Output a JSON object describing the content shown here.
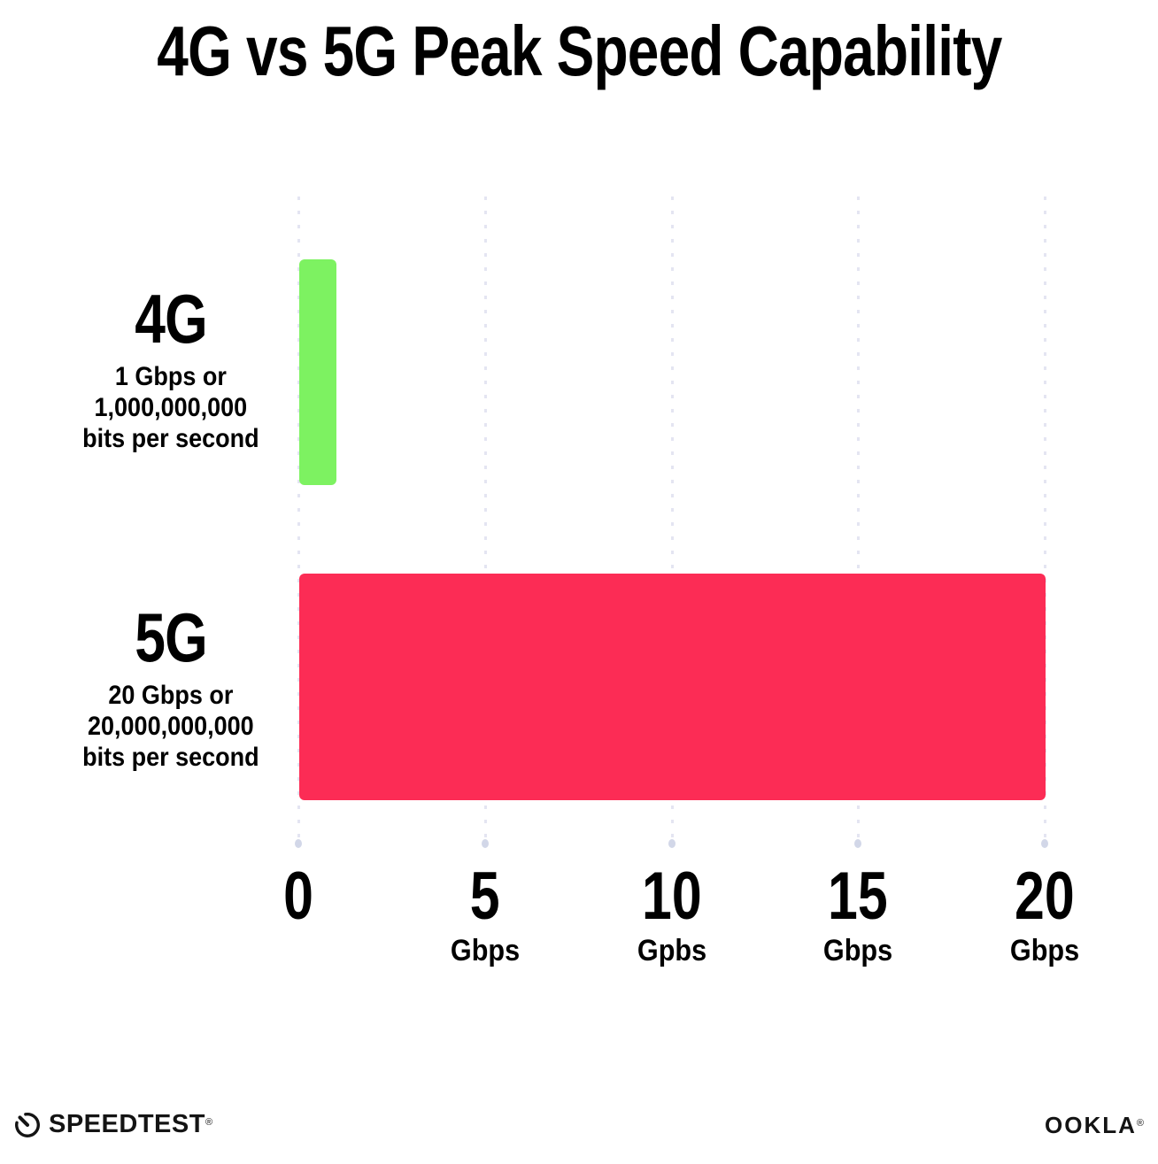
{
  "chart_data": {
    "type": "bar",
    "orientation": "horizontal",
    "title": "4G vs 5G Peak Speed Capability",
    "categories": [
      "4G",
      "5G"
    ],
    "values": [
      1,
      20
    ],
    "value_unit": "Gbps",
    "bar_colors": [
      "#7df261",
      "#fc2c55"
    ],
    "bar_sublabels": [
      [
        "1 Gbps or",
        "1,000,000,000",
        "bits per second"
      ],
      [
        "20 Gbps or",
        "20,000,000,000",
        "bits per second"
      ]
    ],
    "xlim": [
      0,
      20
    ],
    "x_ticks": [
      {
        "value": "0",
        "unit": ""
      },
      {
        "value": "5",
        "unit": "Gbps"
      },
      {
        "value": "10",
        "unit": "Gpbs"
      },
      {
        "value": "15",
        "unit": "Gbps"
      },
      {
        "value": "20",
        "unit": "Gbps"
      }
    ],
    "grid": "dotted-vertical",
    "legend": "none"
  },
  "colors": {
    "background": "#ffffff",
    "gridline": "#e4e5f2",
    "axis_dot": "#d2d7e8",
    "text": "#000000"
  },
  "footer": {
    "speedtest": {
      "label": "SPEEDTEST",
      "trademark": "®",
      "icon": "speedometer-gauge"
    },
    "ookla": {
      "label": "OOKLA",
      "trademark": "®"
    }
  }
}
